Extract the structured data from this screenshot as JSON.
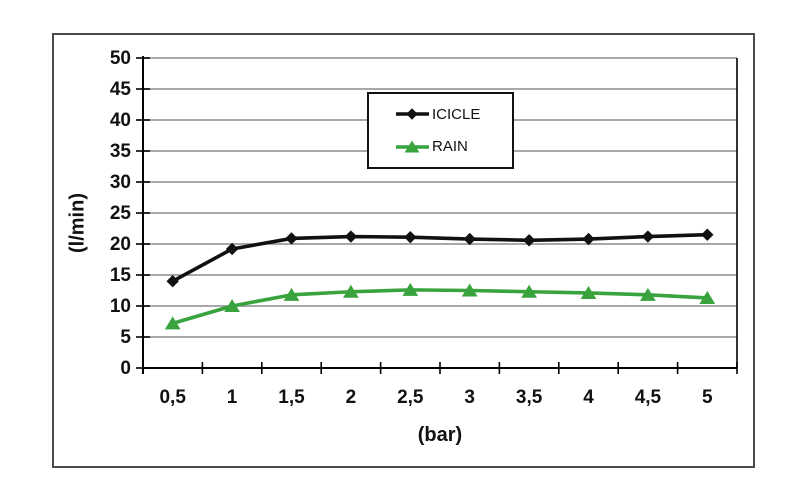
{
  "figure": {
    "background": "#ffffff",
    "frame_color": "#4a4a4a"
  },
  "chart_data": {
    "type": "line",
    "title": "",
    "xlabel": "(bar)",
    "ylabel": "(l/min)",
    "categories": [
      "0,5",
      "1",
      "1,5",
      "2",
      "2,5",
      "3",
      "3,5",
      "4",
      "4,5",
      "5"
    ],
    "series": [
      {
        "name": "ICICLE",
        "color": "#111111",
        "marker": "diamond",
        "values": [
          14,
          19.2,
          20.9,
          21.2,
          21.1,
          20.8,
          20.6,
          20.8,
          21.2,
          21.5
        ]
      },
      {
        "name": "RAIN",
        "color": "#39a33e",
        "marker": "triangle",
        "values": [
          7.2,
          10,
          11.8,
          12.3,
          12.6,
          12.5,
          12.3,
          12.1,
          11.8,
          11.3
        ]
      }
    ],
    "ylim": [
      0,
      50
    ],
    "y_ticks": [
      "0",
      "5",
      "10",
      "15",
      "20",
      "25",
      "30",
      "35",
      "40",
      "45",
      "50"
    ],
    "grid": "horizontal",
    "gridline_color": "#8c8c8c",
    "axis_color": "#000000",
    "tick_label_color": "#111111",
    "legend_position": "inside-top-center",
    "legend_border_color": "#111111"
  }
}
